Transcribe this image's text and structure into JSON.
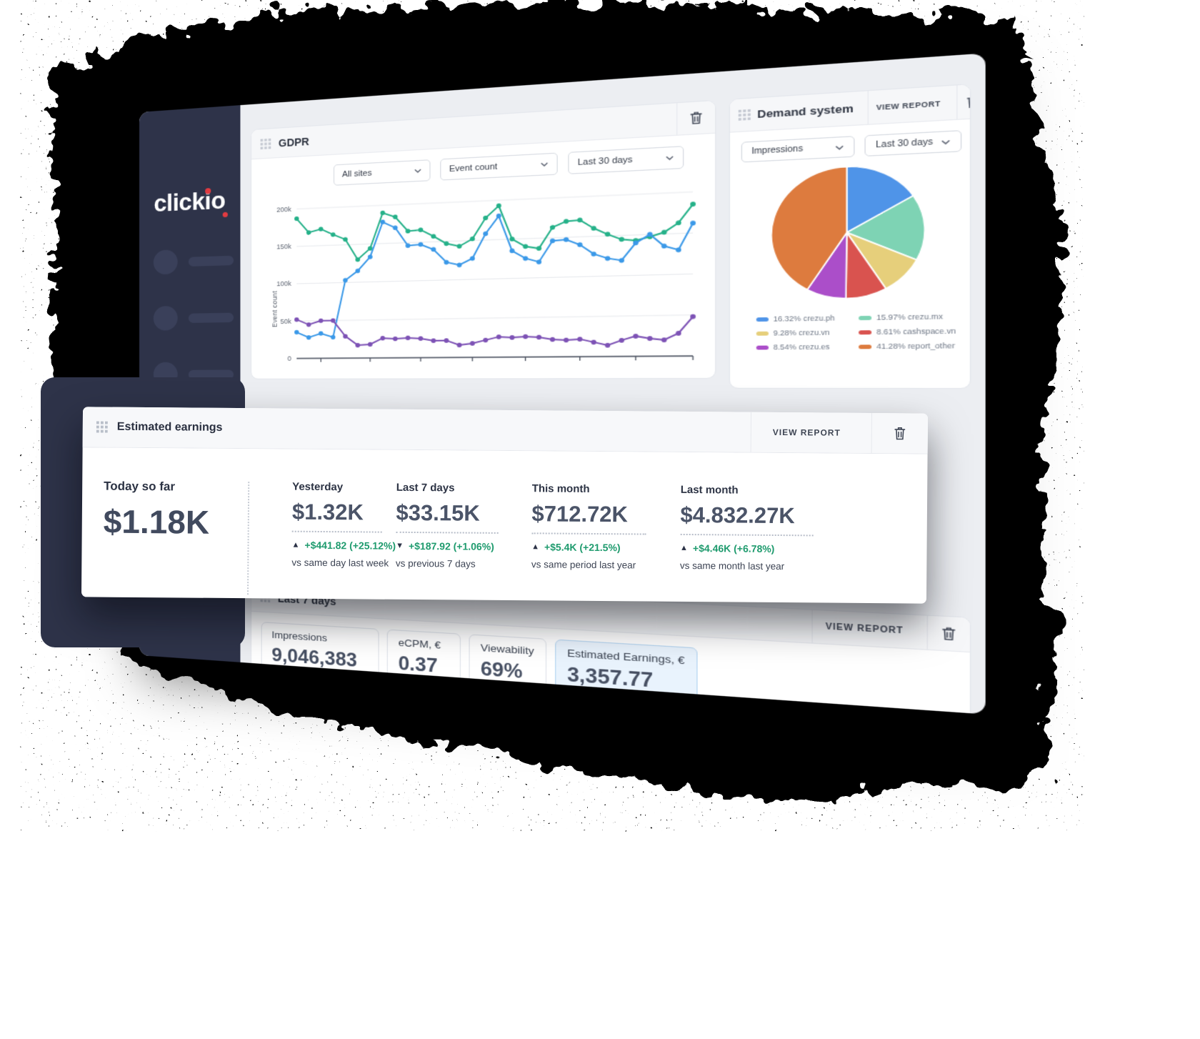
{
  "sidebar": {
    "logo_text": "clickio"
  },
  "gdpr_panel": {
    "title": "GDPR",
    "filters": [
      "All sites",
      "Event count",
      "Last 30 days"
    ]
  },
  "demand_panel": {
    "title": "Demand system",
    "view_report_label": "VIEW REPORT",
    "filters": [
      "Impressions",
      "Last 30 days"
    ]
  },
  "earnings_panel": {
    "title": "Estimated earnings",
    "view_report_label": "VIEW REPORT",
    "columns": [
      {
        "label": "Today so far",
        "value": "$1.18K",
        "primary": true
      },
      {
        "label": "Yesterday",
        "value": "$1.32K",
        "direction": "up",
        "delta": "+$441.82 (+25.12%)",
        "note": "vs same day last week"
      },
      {
        "label": "Last 7 days",
        "value": "$33.15K",
        "direction": "down",
        "delta": "+$187.92 (+1.06%)",
        "note": "vs previous 7 days"
      },
      {
        "label": "This month",
        "value": "$712.72K",
        "direction": "up",
        "delta": "+$5.4K (+21.5%)",
        "note": "vs same period last year"
      },
      {
        "label": "Last month",
        "value": "$4.832.27K",
        "direction": "up",
        "delta": "+$4.46K (+6.78%)",
        "note": "vs same month last year"
      }
    ]
  },
  "bottom_panel": {
    "title": "Last 7 days",
    "view_report_label": "VIEW REPORT",
    "stats": [
      {
        "label": "Impressions",
        "value": "9,046,383"
      },
      {
        "label": "eCPM, €",
        "value": "0.37"
      },
      {
        "label": "Viewability",
        "value": "69%"
      },
      {
        "label": "Estimated Earnings, €",
        "value": "3,357.77",
        "highlight": true
      }
    ]
  },
  "colors": {
    "sidebar_navy": "#2e3349",
    "accent_red": "#e23b41",
    "positive_green": "#1f9b6e"
  },
  "chart_data": [
    {
      "type": "line",
      "panel": "GDPR",
      "ylabel": "Event count",
      "ylim": [
        0,
        207
      ],
      "unit": "thousands",
      "yticks": [
        [
          0,
          "0"
        ],
        [
          50,
          "50k"
        ],
        [
          100,
          "100k"
        ],
        [
          150,
          "150k"
        ],
        [
          200,
          "200k"
        ]
      ],
      "grid": true,
      "series": [
        {
          "name": "series-green",
          "color": "#25b189",
          "values": [
            187,
            168,
            172,
            164,
            157,
            130,
            144,
            190,
            184,
            165,
            166,
            157,
            147,
            143,
            152,
            178,
            193,
            150,
            140,
            137,
            163,
            170,
            171,
            160,
            152,
            145,
            143,
            147,
            152,
            163,
            185
          ]
        },
        {
          "name": "series-blue",
          "color": "#3b99e8",
          "values": [
            35,
            28,
            33,
            28,
            103,
            115,
            133,
            178,
            170,
            146,
            147,
            140,
            123,
            119,
            127,
            158,
            180,
            135,
            125,
            120,
            146,
            147,
            140,
            128,
            122,
            119,
            140,
            150,
            135,
            130,
            162
          ]
        },
        {
          "name": "series-purple",
          "color": "#7d52b5",
          "values": [
            52,
            45,
            50,
            50,
            29,
            17,
            18,
            26,
            25,
            26,
            25,
            22,
            22,
            16,
            18,
            22,
            26,
            25,
            26,
            25,
            22,
            21,
            22,
            18,
            14,
            20,
            25,
            22,
            20,
            28,
            48
          ]
        }
      ]
    },
    {
      "type": "pie",
      "panel": "Demand system",
      "legend_position": "bottom",
      "slices": [
        {
          "label": "crezu.ph",
          "pct": 16.32,
          "color": "#4f94e8"
        },
        {
          "label": "crezu.mx",
          "pct": 15.97,
          "color": "#7ed3b4"
        },
        {
          "label": "crezu.vn",
          "pct": 9.28,
          "color": "#e6cf7b"
        },
        {
          "label": "cashspace.vn",
          "pct": 8.61,
          "color": "#d9534f"
        },
        {
          "label": "crezu.es",
          "pct": 8.54,
          "color": "#ab4ec9"
        },
        {
          "label": "report_other",
          "pct": 41.28,
          "color": "#dd7b3e"
        }
      ]
    }
  ]
}
